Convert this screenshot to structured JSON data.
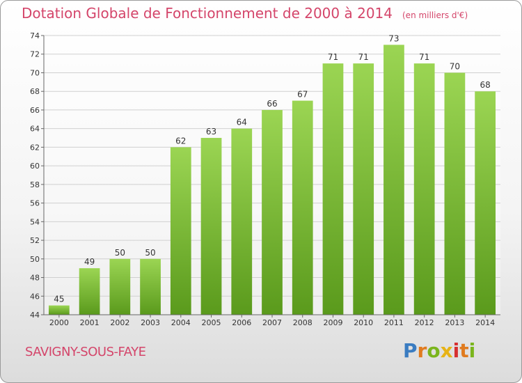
{
  "title": "Dotation Globale de Fonctionnement de 2000 à 2014",
  "unit": "(en milliers d'€)",
  "commune": "SAVIGNY-SOUS-FAYE",
  "logo": [
    "P",
    "r",
    "o",
    "x",
    "i",
    "t",
    "i"
  ],
  "colors": {
    "title": "#d4456a",
    "bar_top": "#9bd553",
    "bar_bottom": "#5a9a1c",
    "logo": [
      "#3a7cc1",
      "#e07b1f",
      "#7ab51d",
      "#e7b316",
      "#d62f30",
      "#e07b1f",
      "#7ab51d"
    ]
  },
  "chart_data": {
    "type": "bar",
    "categories": [
      "2000",
      "2001",
      "2002",
      "2003",
      "2004",
      "2005",
      "2006",
      "2007",
      "2008",
      "2009",
      "2010",
      "2011",
      "2012",
      "2013",
      "2014"
    ],
    "values": [
      45,
      49,
      50,
      50,
      62,
      63,
      64,
      66,
      67,
      71,
      71,
      73,
      71,
      70,
      68
    ],
    "ylim": [
      44,
      74
    ],
    "yticks": [
      44,
      46,
      48,
      50,
      52,
      54,
      56,
      58,
      60,
      62,
      64,
      66,
      68,
      70,
      72,
      74
    ],
    "grid": true,
    "xlabel": "",
    "ylabel": ""
  }
}
